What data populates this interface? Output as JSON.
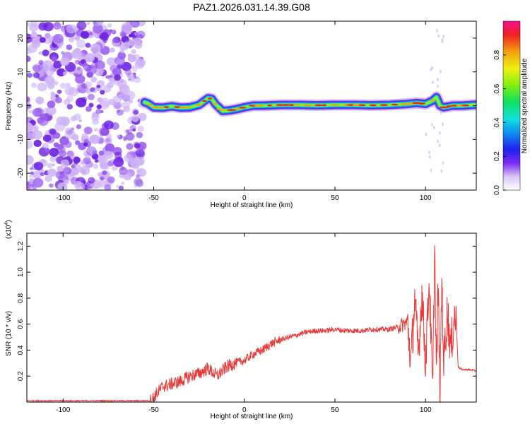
{
  "figure": {
    "title": "PAZ1.2026.031.14.39.G08"
  },
  "chart_data": [
    {
      "type": "heatmap",
      "title": "PAZ1.2026.031.14.39.G08",
      "xlabel": "Height of straight line (km)",
      "ylabel": "Frequency (Hz)",
      "xlim": [
        -120,
        128
      ],
      "ylim": [
        -25,
        25
      ],
      "xticks": [
        -100,
        -50,
        0,
        50,
        100
      ],
      "yticks": [
        -20,
        -10,
        0,
        10,
        20
      ],
      "xtick_labels": [
        "-100",
        "-50",
        "0",
        "50",
        "100"
      ],
      "ytick_labels": [
        "-20",
        "-10",
        "0",
        "10",
        "20"
      ],
      "noise_region_x": [
        -120,
        -56
      ],
      "signal_trace": {
        "x": [
          -55,
          -53,
          -50,
          -45,
          -40,
          -35,
          -30,
          -25,
          -20,
          -18,
          -16,
          -12,
          -8,
          -4,
          0,
          5,
          10,
          20,
          30,
          40,
          50,
          60,
          70,
          80,
          90,
          95,
          100,
          104,
          106,
          108,
          110,
          115,
          120,
          128
        ],
        "freq_hz": [
          1.0,
          0.6,
          -0.5,
          -0.6,
          -0.2,
          -0.6,
          -0.5,
          0.2,
          2.2,
          2.0,
          0.5,
          -1.6,
          -1.4,
          -1.0,
          -0.5,
          0.0,
          0.0,
          0.2,
          0.2,
          0.1,
          0.2,
          0.2,
          0.1,
          0.2,
          0.5,
          0.8,
          0.5,
          1.5,
          2.5,
          0.0,
          -0.5,
          0.0,
          0.0,
          0.3
        ]
      },
      "colorbar": {
        "label": "Normalized spectral amplitude",
        "range": [
          0,
          1
        ],
        "ticks": [
          0.0,
          0.2,
          0.4,
          0.6,
          0.8
        ],
        "tick_labels": [
          "0.0",
          "0.2",
          "0.4",
          "0.6",
          "0.8"
        ]
      }
    },
    {
      "type": "line",
      "xlabel": "Height of straight line (km)",
      "ylabel": "SNR (10 * v/v)",
      "scale_label": "(x10",
      "scale_exponent": "4",
      "scale_suffix": ")",
      "xlim": [
        -120,
        128
      ],
      "ylim": [
        0,
        1.3
      ],
      "xticks": [
        -100,
        -50,
        0,
        50,
        100
      ],
      "yticks": [
        0.2,
        0.4,
        0.6,
        0.8,
        1.0,
        1.2
      ],
      "xtick_labels": [
        "-100",
        "-50",
        "0",
        "50",
        "100"
      ],
      "ytick_labels": [
        "0.2",
        "0.4",
        "0.6",
        "0.8",
        "1.0",
        "1.2"
      ],
      "series": [
        {
          "name": "SNR",
          "color": "#e83a3a",
          "x": [
            -120,
            -90,
            -60,
            -52,
            -50,
            -45,
            -40,
            -35,
            -30,
            -25,
            -20,
            -15,
            -10,
            -5,
            0,
            5,
            10,
            15,
            20,
            25,
            30,
            35,
            40,
            45,
            50,
            55,
            60,
            65,
            70,
            75,
            80,
            85,
            88,
            90,
            92,
            94,
            96,
            98,
            100,
            102,
            104,
            105,
            106,
            107,
            108,
            109,
            110,
            112,
            114,
            116,
            117,
            118,
            120,
            124,
            128
          ],
          "values": [
            0.01,
            0.01,
            0.01,
            0.01,
            0.04,
            0.12,
            0.14,
            0.16,
            0.2,
            0.22,
            0.26,
            0.2,
            0.27,
            0.3,
            0.32,
            0.37,
            0.4,
            0.45,
            0.48,
            0.5,
            0.52,
            0.54,
            0.55,
            0.55,
            0.56,
            0.55,
            0.55,
            0.55,
            0.56,
            0.56,
            0.56,
            0.58,
            0.6,
            0.62,
            0.3,
            0.8,
            0.35,
            0.85,
            0.3,
            0.95,
            0.05,
            1.25,
            0.2,
            0.9,
            0.02,
            1.0,
            0.3,
            0.7,
            0.4,
            0.68,
            0.6,
            0.27,
            0.25,
            0.25,
            0.24
          ]
        }
      ]
    }
  ]
}
